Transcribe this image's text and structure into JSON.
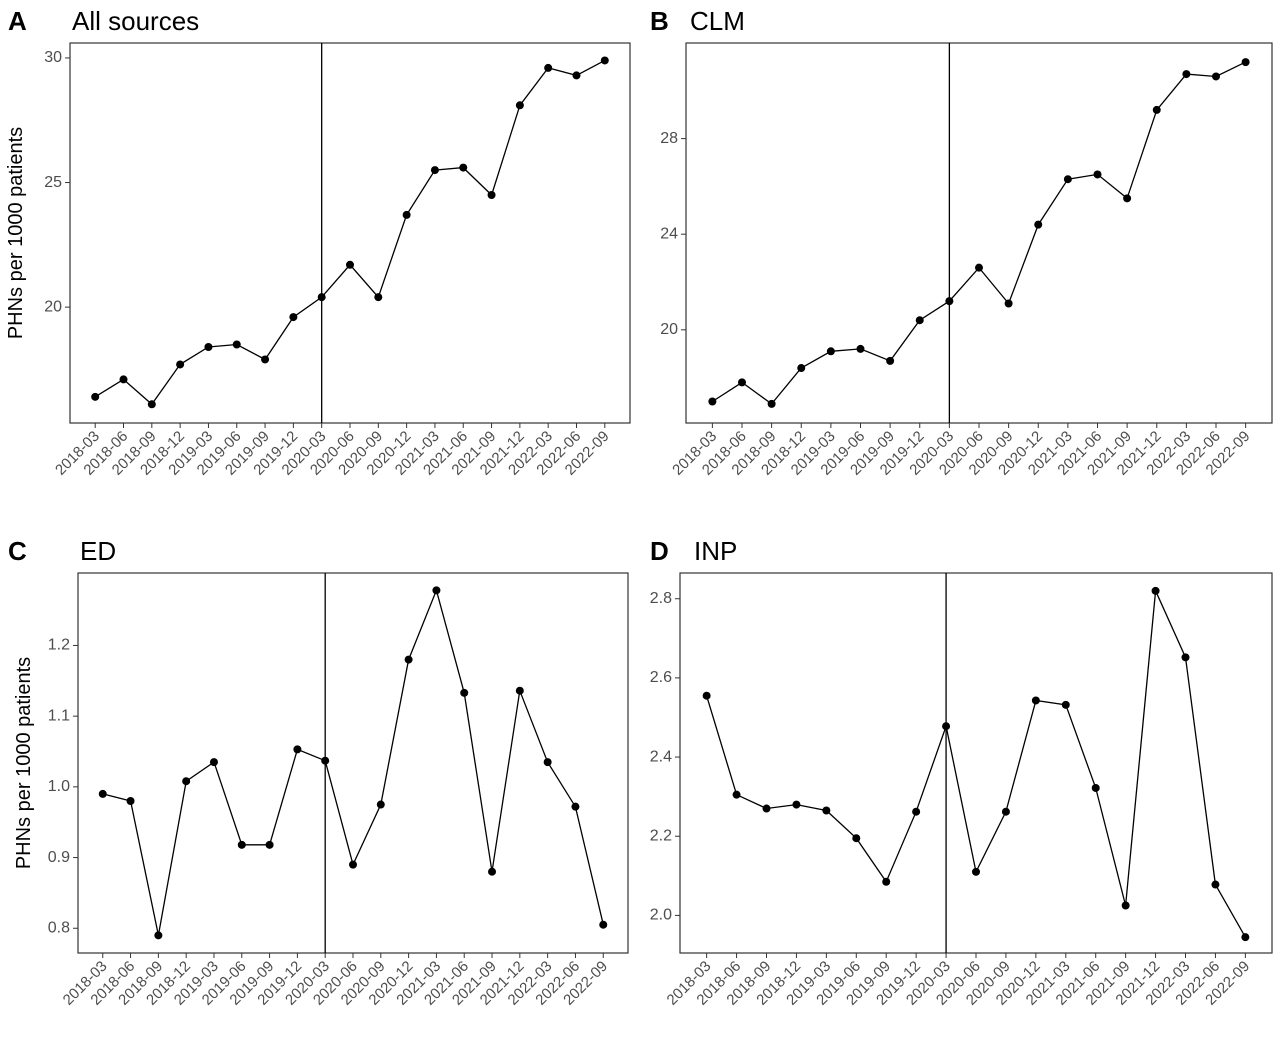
{
  "chart_data": [
    {
      "type": "line",
      "panel": "A",
      "title": "All sources",
      "ylabel": "PHNs per 1000 patients",
      "xlabel": "",
      "x": [
        "2018-03",
        "2018-06",
        "2018-09",
        "2018-12",
        "2019-03",
        "2019-06",
        "2019-09",
        "2019-12",
        "2020-03",
        "2020-06",
        "2020-09",
        "2020-12",
        "2021-03",
        "2021-06",
        "2021-09",
        "2021-12",
        "2022-03",
        "2022-06",
        "2022-09"
      ],
      "values": [
        16.4,
        17.1,
        16.1,
        17.7,
        18.4,
        18.5,
        17.9,
        19.6,
        20.4,
        21.7,
        20.4,
        23.7,
        25.5,
        25.6,
        24.5,
        28.1,
        29.6,
        29.3,
        29.9
      ],
      "yticks": [
        20,
        25,
        30
      ],
      "ylim": [
        15.35,
        30.6
      ],
      "vline_x": "2020-03",
      "grid": false
    },
    {
      "type": "line",
      "panel": "B",
      "title": "CLM",
      "ylabel": "",
      "xlabel": "",
      "x": [
        "2018-03",
        "2018-06",
        "2018-09",
        "2018-12",
        "2019-03",
        "2019-06",
        "2019-09",
        "2019-12",
        "2020-03",
        "2020-06",
        "2020-09",
        "2020-12",
        "2021-03",
        "2021-06",
        "2021-09",
        "2021-12",
        "2022-03",
        "2022-06",
        "2022-09"
      ],
      "values": [
        17.0,
        17.8,
        16.9,
        18.4,
        19.1,
        19.2,
        18.7,
        20.4,
        21.2,
        22.6,
        21.1,
        24.4,
        26.3,
        26.5,
        25.5,
        29.2,
        30.7,
        30.6,
        31.2
      ],
      "yticks": [
        20,
        24,
        28
      ],
      "ylim": [
        16.1,
        32.0
      ],
      "vline_x": "2020-03",
      "grid": false
    },
    {
      "type": "line",
      "panel": "C",
      "title": "ED",
      "ylabel": "PHNs per 1000 patients",
      "xlabel": "",
      "x": [
        "2018-03",
        "2018-06",
        "2018-09",
        "2018-12",
        "2019-03",
        "2019-06",
        "2019-09",
        "2019-12",
        "2020-03",
        "2020-06",
        "2020-09",
        "2020-12",
        "2021-03",
        "2021-06",
        "2021-09",
        "2021-12",
        "2022-03",
        "2022-06",
        "2022-09"
      ],
      "values": [
        0.99,
        0.98,
        0.79,
        1.008,
        1.035,
        0.918,
        0.918,
        1.053,
        1.037,
        0.89,
        0.975,
        1.18,
        1.278,
        1.133,
        0.88,
        1.136,
        1.035,
        0.972,
        0.805
      ],
      "yticks": [
        0.8,
        0.9,
        1.0,
        1.1,
        1.2
      ],
      "ylim": [
        0.765,
        1.3025
      ],
      "vline_x": "2020-03",
      "grid": false
    },
    {
      "type": "line",
      "panel": "D",
      "title": "INP",
      "ylabel": "",
      "xlabel": "",
      "x": [
        "2018-03",
        "2018-06",
        "2018-09",
        "2018-12",
        "2019-03",
        "2019-06",
        "2019-09",
        "2019-12",
        "2020-03",
        "2020-06",
        "2020-09",
        "2020-12",
        "2021-03",
        "2021-06",
        "2021-09",
        "2021-12",
        "2022-03",
        "2022-06",
        "2022-09"
      ],
      "values": [
        2.555,
        2.305,
        2.27,
        2.28,
        2.265,
        2.195,
        2.085,
        2.262,
        2.478,
        2.11,
        2.262,
        2.543,
        2.532,
        2.322,
        2.025,
        2.82,
        2.652,
        2.078,
        1.945
      ],
      "yticks": [
        2.0,
        2.2,
        2.4,
        2.6,
        2.8
      ],
      "ylim": [
        1.905,
        2.865
      ],
      "vline_x": "2020-03",
      "grid": false
    }
  ]
}
